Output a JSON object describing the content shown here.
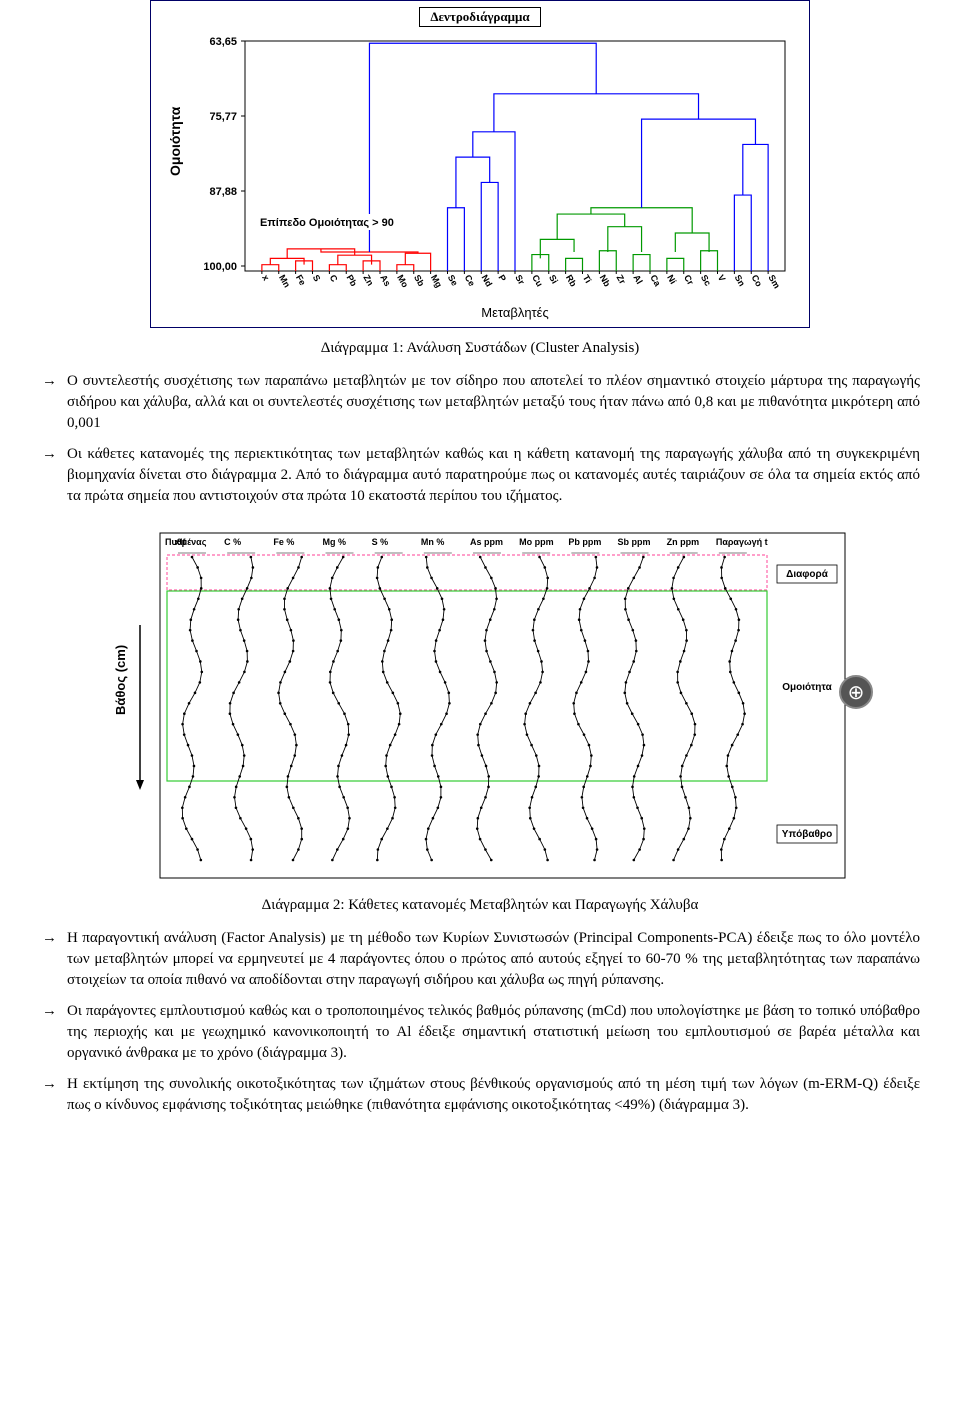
{
  "dendrogram": {
    "box_title": "Δεντροδιάγραμμα",
    "y_axis_label": "Ομοιότητα",
    "y_ticks": [
      "63,65",
      "75,77",
      "87,88",
      "100,00"
    ],
    "y_tick_positions": [
      0,
      75,
      150,
      225
    ],
    "threshold_label": "Επίπεδο Ομοιότητας > 90",
    "x_axis_label": "Μεταβλητές",
    "x_labels": [
      "x",
      "Mn",
      "Fe",
      "S",
      "C",
      "Pb",
      "Zn",
      "As",
      "Mo",
      "Sb",
      "Mg",
      "Se",
      "Ce",
      "Nd",
      "P",
      "Sr",
      "Cu",
      "Si",
      "Rb",
      "Ti",
      "Nb",
      "Zr",
      "Al",
      "Ca",
      "Ni",
      "Cr",
      "Sc",
      "V",
      "Sn",
      "Co",
      "Sm"
    ],
    "colors": {
      "blue": "#0000ff",
      "red": "#ff0000",
      "green": "#009900",
      "border": "#000066",
      "axis": "#000000"
    },
    "caption": "Διάγραμμα 1: Ανάλυση Συστάδων (Cluster Analysis)"
  },
  "bullets1": [
    "Ο συντελεστής συσχέτισης των παραπάνω μεταβλητών με τον σίδηρο που αποτελεί το πλέον σημαντικό στοιχείο μάρτυρα της παραγωγής σιδήρου και χάλυβα, αλλά και οι συντελεστές συσχέτισης των μεταβλητών μεταξύ τους ήταν πάνω από 0,8 και με πιθανότητα μικρότερη από 0,001",
    "Οι κάθετες κατανομές της περιεκτικότητας των μεταβλητών καθώς και η κάθετη κατανομή της παραγωγής χάλυβα από τη συγκεκριμένη βιομηχανία δίνεται στο διάγραμμα 2. Από το διάγραμμα αυτό παρατηρούμε πως οι κατανομές αυτές ταιριάζουν σε όλα τα σημεία εκτός από τα πρώτα σημεία που αντιστοιχούν στα πρώτα 10 εκατοστά περίπου του ιζήματος."
  ],
  "profiles": {
    "y_axis_label": "Βάθος (cm)",
    "top_labels": [
      "Πυθμένας",
      "xlf",
      "C %",
      "Fe %",
      "Mg %",
      "S %",
      "Mn %",
      "As ppm",
      "Mo ppm",
      "Pb ppm",
      "Sb ppm",
      "Zn ppm",
      "Παραγωγή t"
    ],
    "right_labels": {
      "top": "Διαφορά",
      "mid": "Ομοιότητα",
      "bottom": "Υπόβαθρο"
    },
    "colors": {
      "line": "#000000",
      "marker_fill": "#000000",
      "pink_box": "#ff66aa",
      "green_box": "#33cc33",
      "border": "#000000",
      "bg": "#ffffff"
    },
    "caption": "Διάγραμμα 2: Κάθετες κατανομές Μεταβλητών και Παραγωγής Χάλυβα",
    "series_count": 12,
    "depth_points": 30
  },
  "bullets2": [
    "Η παραγοντική ανάλυση (Factor Analysis) με τη μέθοδο των Κυρίων Συνιστωσών (Principal Components-PCA) έδειξε πως το όλο μοντέλο των μεταβλητών μπορεί να ερμηνευτεί με 4 παράγοντες όπου ο πρώτος από αυτούς εξηγεί το 60-70 % της μεταβλητότητας των παραπάνω στοιχείων τα οποία πιθανό να αποδίδονται στην παραγωγή σιδήρου και χάλυβα ως πηγή ρύπανσης.",
    "Οι παράγοντες εμπλουτισμού καθώς και ο τροποποιημένος τελικός βαθμός ρύπανσης (mCd) που υπολογίστηκε με βάση το τοπικό υπόβαθρο της περιοχής και με γεωχημικό κανονικοποιητή το Al έδειξε σημαντική στατιστική μείωση του εμπλουτισμού σε βαρέα μέταλλα και οργανικό άνθρακα με το χρόνο (διάγραμμα 3).",
    "Η εκτίμηση της συνολικής οικοτοξικότητας των ιζημάτων στους βένθικούς οργανισμούς από τη μέση τιμή των λόγων (m-ERM-Q) έδειξε πως ο κίνδυνος εμφάνισης τοξικότητας μειώθηκε (πιθανότητα εμφάνισης οικοτοξικότητας <49%) (διάγραμμα 3)."
  ],
  "arrow_glyph": "→",
  "zoom_glyph": "⊕"
}
